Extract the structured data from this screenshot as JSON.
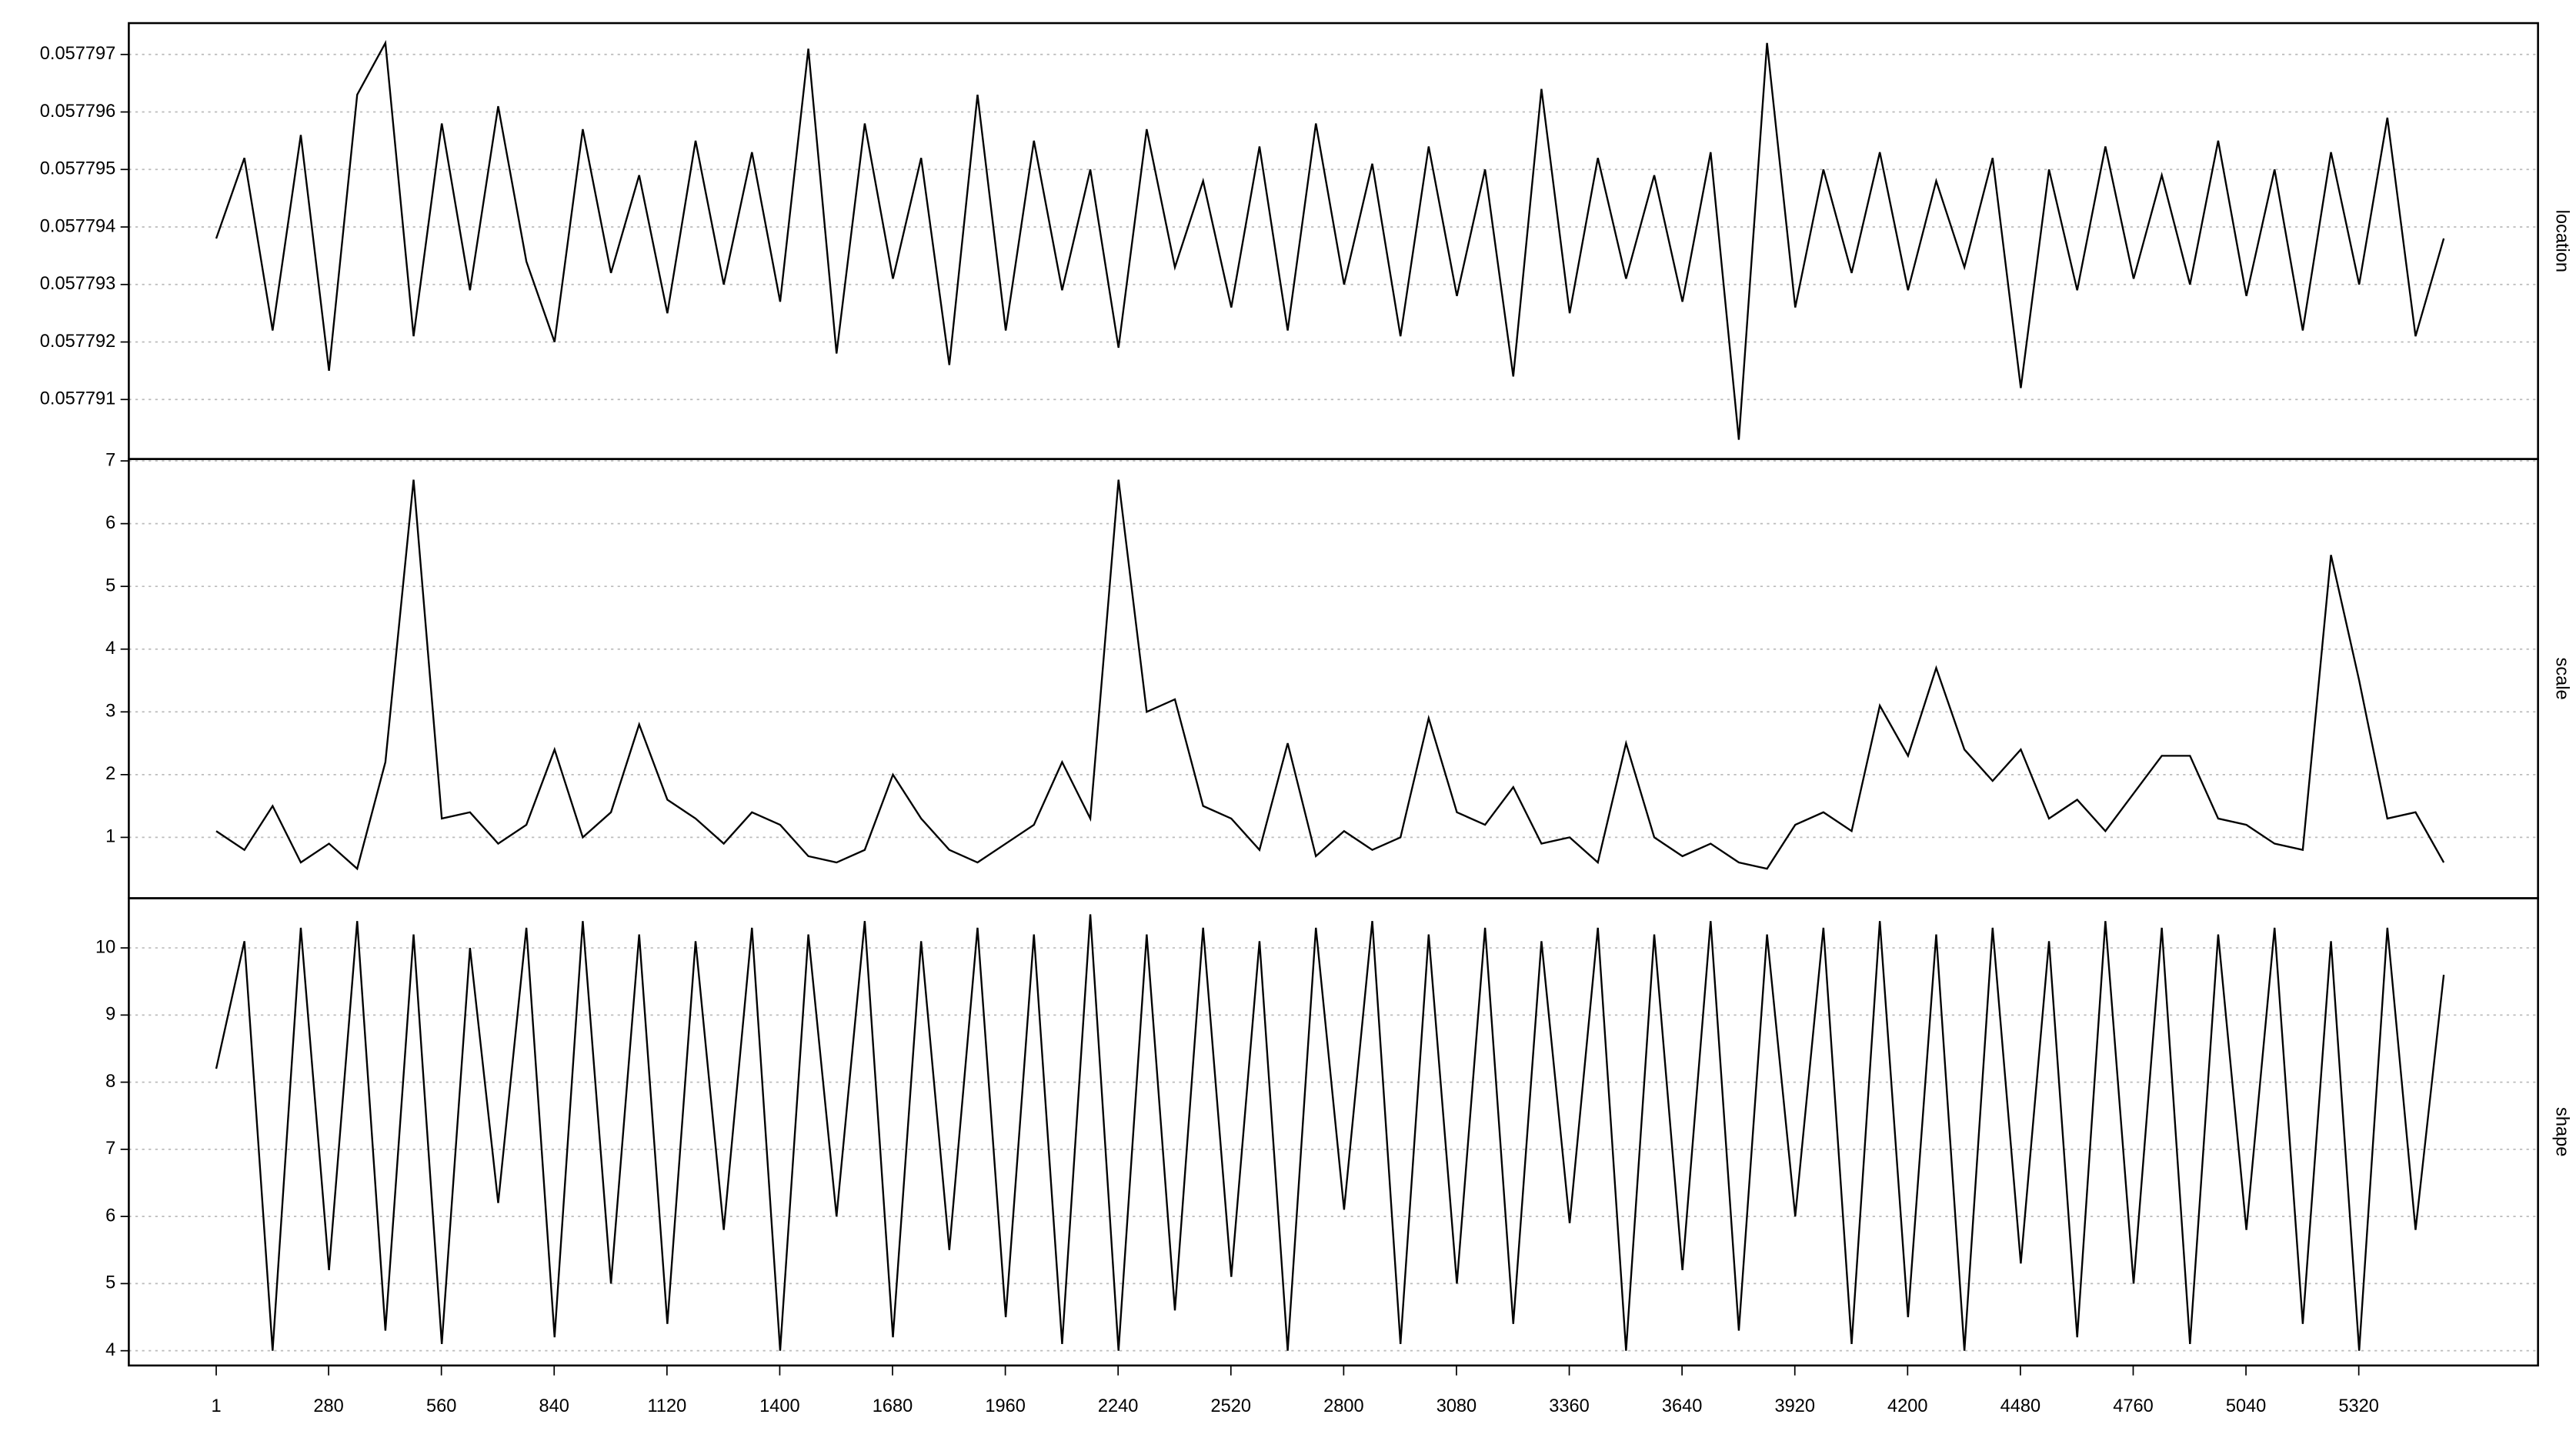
{
  "chart_data": {
    "type": "line",
    "x": [
      1,
      71,
      141,
      211,
      281,
      351,
      421,
      491,
      561,
      631,
      701,
      771,
      841,
      911,
      981,
      1051,
      1121,
      1191,
      1261,
      1331,
      1401,
      1471,
      1541,
      1611,
      1681,
      1751,
      1821,
      1891,
      1961,
      2031,
      2101,
      2171,
      2241,
      2311,
      2381,
      2451,
      2521,
      2591,
      2661,
      2731,
      2801,
      2871,
      2941,
      3011,
      3081,
      3151,
      3221,
      3291,
      3361,
      3431,
      3501,
      3571,
      3641,
      3711,
      3781,
      3851,
      3921,
      3991,
      4061,
      4131,
      4201,
      4271,
      4341,
      4411,
      4481,
      4551,
      4621,
      4691,
      4761,
      4831,
      4901,
      4971,
      5041,
      5111,
      5181,
      5251,
      5321,
      5391,
      5461,
      5531
    ],
    "xlim": [
      -216,
      5765
    ],
    "xticks": [
      1,
      280,
      560,
      840,
      1120,
      1400,
      1680,
      1960,
      2240,
      2520,
      2800,
      3080,
      3360,
      3640,
      3920,
      4200,
      4480,
      4760,
      5040,
      5320
    ],
    "panels": [
      {
        "ylabel": "location",
        "color": "#000000",
        "ylim": [
          0.057789965,
          0.057797545
        ],
        "yticks": [
          0.057791,
          0.057792,
          0.057793,
          0.057794,
          0.057795,
          0.057796,
          0.057797
        ],
        "values": [
          0.0577938,
          0.0577952,
          0.0577922,
          0.0577956,
          0.0577915,
          0.0577963,
          0.0577972,
          0.0577921,
          0.0577958,
          0.0577929,
          0.0577961,
          0.0577934,
          0.057792,
          0.0577957,
          0.0577932,
          0.0577949,
          0.0577925,
          0.0577955,
          0.057793,
          0.0577953,
          0.0577927,
          0.0577971,
          0.0577918,
          0.0577958,
          0.0577931,
          0.0577952,
          0.0577916,
          0.0577963,
          0.0577922,
          0.0577955,
          0.0577929,
          0.057795,
          0.0577919,
          0.0577957,
          0.0577933,
          0.0577948,
          0.0577926,
          0.0577954,
          0.0577922,
          0.0577958,
          0.057793,
          0.0577951,
          0.0577921,
          0.0577954,
          0.0577928,
          0.057795,
          0.0577914,
          0.0577964,
          0.0577925,
          0.0577952,
          0.0577931,
          0.0577949,
          0.0577927,
          0.0577953,
          0.0577903,
          0.0577972,
          0.0577926,
          0.057795,
          0.0577932,
          0.0577953,
          0.0577929,
          0.0577948,
          0.0577933,
          0.0577952,
          0.0577912,
          0.057795,
          0.0577929,
          0.0577954,
          0.0577931,
          0.0577949,
          0.057793,
          0.0577955,
          0.0577928,
          0.057795,
          0.0577922,
          0.0577953,
          0.057793,
          0.0577959,
          0.0577921,
          0.0577938
        ]
      },
      {
        "ylabel": "scale",
        "color": "#000000",
        "ylim": [
          0.03,
          7.03
        ],
        "yticks": [
          1,
          2,
          3,
          4,
          5,
          6,
          7
        ],
        "values": [
          1.1,
          0.8,
          1.5,
          0.6,
          0.9,
          0.5,
          2.2,
          6.7,
          1.3,
          1.4,
          0.9,
          1.2,
          2.4,
          1.0,
          1.4,
          2.8,
          1.6,
          1.3,
          0.9,
          1.4,
          1.2,
          0.7,
          0.6,
          0.8,
          2.0,
          1.3,
          0.8,
          0.6,
          0.9,
          1.2,
          2.2,
          1.3,
          6.7,
          3.0,
          3.2,
          1.5,
          1.3,
          0.8,
          2.5,
          0.7,
          1.1,
          0.8,
          1.0,
          2.9,
          1.4,
          1.2,
          1.8,
          0.9,
          1.0,
          0.6,
          2.5,
          1.0,
          0.7,
          0.9,
          0.6,
          0.5,
          1.2,
          1.4,
          1.1,
          3.1,
          2.3,
          3.7,
          2.4,
          1.9,
          2.4,
          1.3,
          1.6,
          1.1,
          1.7,
          2.3,
          2.3,
          1.3,
          1.2,
          0.9,
          0.8,
          5.5,
          3.5,
          1.3,
          1.4,
          0.6
        ]
      },
      {
        "ylabel": "shape",
        "color": "#000000",
        "ylim": [
          3.78,
          10.74
        ],
        "yticks": [
          4,
          5,
          6,
          7,
          8,
          9,
          10
        ],
        "values": [
          8.2,
          10.1,
          4.0,
          10.3,
          5.2,
          10.4,
          4.3,
          10.2,
          4.1,
          10.0,
          6.2,
          10.3,
          4.2,
          10.4,
          5.0,
          10.2,
          4.4,
          10.1,
          5.8,
          10.3,
          4.0,
          10.2,
          6.0,
          10.4,
          4.2,
          10.1,
          5.5,
          10.3,
          4.5,
          10.2,
          4.1,
          10.5,
          4.0,
          10.2,
          4.6,
          10.3,
          5.1,
          10.1,
          4.0,
          10.3,
          6.1,
          10.4,
          4.1,
          10.2,
          5.0,
          10.3,
          4.4,
          10.1,
          5.9,
          10.3,
          4.0,
          10.2,
          5.2,
          10.4,
          4.3,
          10.2,
          6.0,
          10.3,
          4.1,
          10.4,
          4.5,
          10.2,
          4.0,
          10.3,
          5.3,
          10.1,
          4.2,
          10.4,
          5.0,
          10.3,
          4.1,
          10.2,
          5.8,
          10.3,
          4.4,
          10.1,
          4.0,
          10.3,
          5.8,
          9.6
        ]
      }
    ]
  }
}
